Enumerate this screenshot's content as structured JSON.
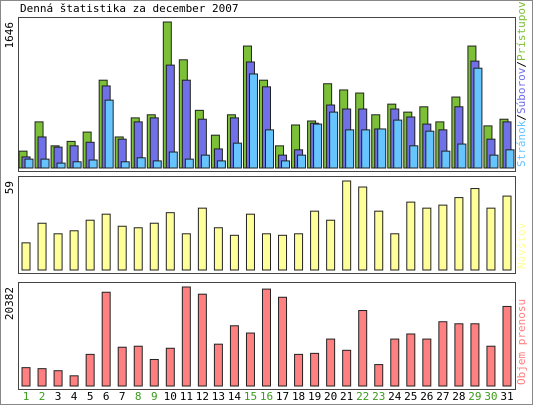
{
  "chart_data": [
    {
      "type": "grouped-bar",
      "title": "Denná štatistika za december 2007",
      "categories": [
        "1",
        "2",
        "3",
        "4",
        "5",
        "6",
        "7",
        "8",
        "9",
        "10",
        "11",
        "12",
        "13",
        "14",
        "15",
        "16",
        "17",
        "18",
        "19",
        "20",
        "21",
        "22",
        "23",
        "24",
        "25",
        "26",
        "27",
        "28",
        "29",
        "30",
        "31"
      ],
      "category_colors": [
        "#3b9b1b",
        "#3b9b1b",
        "#000000",
        "#000000",
        "#000000",
        "#000000",
        "#000000",
        "#3b9b1b",
        "#3b9b1b",
        "#000000",
        "#000000",
        "#000000",
        "#000000",
        "#000000",
        "#3b9b1b",
        "#3b9b1b",
        "#000000",
        "#000000",
        "#000000",
        "#000000",
        "#000000",
        "#3b9b1b",
        "#3b9b1b",
        "#000000",
        "#000000",
        "#000000",
        "#000000",
        "#000000",
        "#3b9b1b",
        "#3b9b1b",
        "#000000"
      ],
      "legend_separator": "/",
      "series": [
        {
          "name": "Prístupov",
          "color": "#7cc038",
          "values": [
            190,
            520,
            250,
            300,
            405,
            990,
            350,
            565,
            600,
            1646,
            1220,
            650,
            370,
            600,
            1375,
            990,
            250,
            485,
            530,
            950,
            880,
            845,
            600,
            720,
            630,
            690,
            520,
            800,
            1375,
            475,
            550
          ]
        },
        {
          "name": "Súborov",
          "color": "#7070e8",
          "values": [
            125,
            350,
            235,
            250,
            290,
            925,
            325,
            520,
            565,
            1160,
            990,
            550,
            215,
            565,
            1195,
            915,
            145,
            205,
            505,
            710,
            665,
            665,
            440,
            665,
            575,
            495,
            430,
            690,
            1205,
            325,
            520
          ]
        },
        {
          "name": "Stránok",
          "color": "#66c4ff",
          "values": [
            100,
            100,
            55,
            70,
            90,
            765,
            70,
            115,
            80,
            180,
            100,
            145,
            80,
            280,
            1060,
            430,
            80,
            145,
            495,
            630,
            430,
            430,
            440,
            540,
            250,
            415,
            190,
            270,
            1125,
            145,
            205
          ]
        }
      ],
      "ylim": [
        0,
        1646
      ],
      "yticks": [
        1646
      ]
    },
    {
      "type": "bar",
      "series": [
        {
          "name": "Návštev",
          "color": "#ffff99",
          "values": [
            18,
            31,
            24,
            26,
            33,
            37,
            29,
            28,
            31,
            38,
            24,
            41,
            28,
            23,
            37,
            24,
            23,
            24,
            39,
            33,
            59,
            55,
            39,
            24,
            45,
            41,
            43,
            48,
            54,
            41,
            49
          ]
        }
      ],
      "ylim": [
        0,
        59
      ],
      "yticks": [
        59
      ]
    },
    {
      "type": "bar",
      "series": [
        {
          "name": "Objem prenosu",
          "color": "#ff8080",
          "values": [
            3780,
            3570,
            3150,
            2100,
            6510,
            19300,
            7980,
            8190,
            5460,
            7770,
            20382,
            18900,
            8610,
            12400,
            10900,
            19950,
            18270,
            6510,
            6720,
            9660,
            7350,
            15540,
            4410,
            9660,
            10710,
            9660,
            13230,
            12810,
            12810,
            8190,
            16380
          ]
        }
      ],
      "ylim": [
        0,
        20382
      ],
      "yticks": [
        20382
      ]
    }
  ]
}
